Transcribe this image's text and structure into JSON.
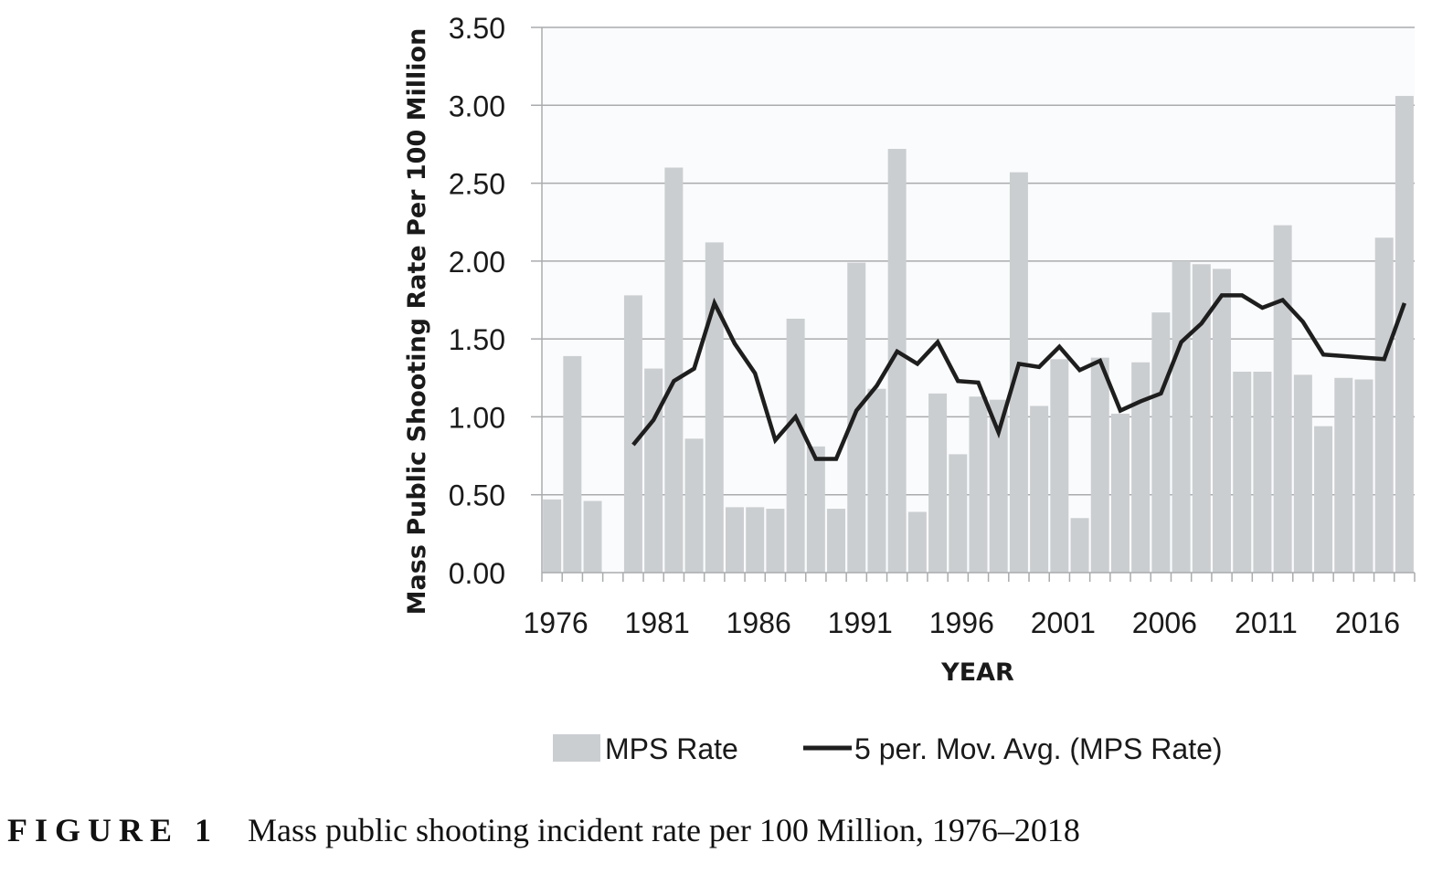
{
  "figure": {
    "label": "FIGURE 1",
    "caption": "Mass public shooting incident rate per 100 Million, 1976–2018"
  },
  "chart_data": {
    "type": "bar",
    "title": "",
    "xlabel": "YEAR",
    "ylabel": "Mass Public Shooting Rate Per 100 Million",
    "ylim": [
      0,
      3.5
    ],
    "yticks": [
      "0.00",
      "0.50",
      "1.00",
      "1.50",
      "2.00",
      "2.50",
      "3.00",
      "3.50"
    ],
    "xtick_labels": [
      "1976",
      "1981",
      "1986",
      "1991",
      "1996",
      "2001",
      "2006",
      "2011",
      "2016"
    ],
    "grid": "horizontal",
    "legend_position": "bottom",
    "categories": [
      "1976",
      "1977",
      "1978",
      "1979",
      "1980",
      "1981",
      "1982",
      "1983",
      "1984",
      "1985",
      "1986",
      "1987",
      "1988",
      "1989",
      "1990",
      "1991",
      "1992",
      "1993",
      "1994",
      "1995",
      "1996",
      "1997",
      "1998",
      "1999",
      "2000",
      "2001",
      "2002",
      "2003",
      "2004",
      "2005",
      "2006",
      "2007",
      "2008",
      "2009",
      "2010",
      "2011",
      "2012",
      "2013",
      "2014",
      "2015",
      "2016",
      "2017",
      "2018"
    ],
    "series": [
      {
        "name": "MPS Rate",
        "type": "bar",
        "color": "#cbced1",
        "values": [
          0.47,
          1.39,
          0.46,
          0.0,
          1.78,
          1.31,
          2.6,
          0.86,
          2.12,
          0.42,
          0.42,
          0.41,
          1.63,
          0.81,
          0.41,
          1.99,
          1.18,
          2.72,
          0.39,
          1.15,
          0.76,
          1.13,
          1.11,
          2.57,
          1.07,
          1.37,
          0.35,
          1.38,
          1.02,
          1.35,
          1.67,
          2.0,
          1.98,
          1.95,
          1.29,
          1.29,
          2.23,
          1.27,
          0.94,
          1.25,
          1.24,
          2.15,
          3.06
        ]
      },
      {
        "name": "5 per. Mov. Avg. (MPS Rate)",
        "type": "line",
        "color": "#1e1e1e",
        "values": [
          null,
          null,
          null,
          null,
          0.82,
          0.98,
          1.23,
          1.31,
          1.73,
          1.47,
          1.28,
          0.85,
          1.0,
          0.73,
          0.73,
          1.04,
          1.2,
          1.42,
          1.34,
          1.48,
          1.23,
          1.22,
          0.9,
          1.34,
          1.32,
          1.45,
          1.3,
          1.36,
          1.04,
          1.1,
          1.15,
          1.48,
          1.6,
          1.78,
          1.78,
          1.7,
          1.75,
          1.61,
          1.4,
          1.39,
          1.38,
          1.37,
          1.73
        ]
      }
    ],
    "legend": [
      {
        "label": "MPS Rate",
        "swatch": "box"
      },
      {
        "label": "5 per. Mov. Avg. (MPS Rate)",
        "swatch": "line"
      }
    ]
  }
}
